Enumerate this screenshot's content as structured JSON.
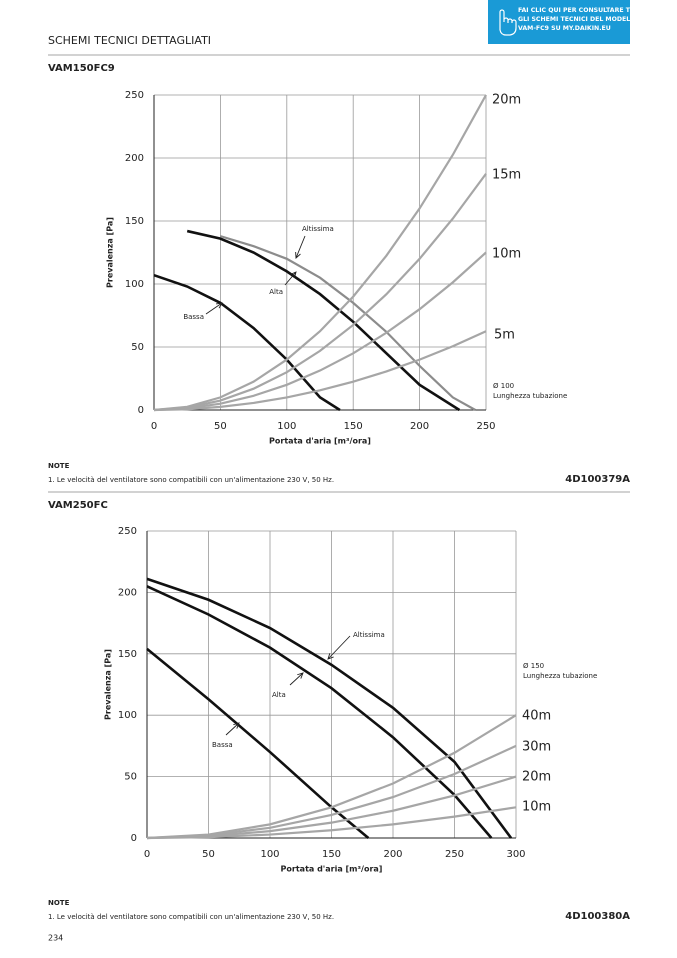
{
  "header": {
    "title": "SCHEMI TECNICI DETTAGLIATI",
    "link": [
      "FAI CLIC QUI PER CONSULTARE TUTTI",
      "GLI SCHEMI TECNICI DEL MODELLO",
      "VAM-FC9 SU MY.DAIKIN.EU"
    ]
  },
  "sections": [
    {
      "note_heading": "NOTE",
      "note": "1.   Le velocità del ventilatore sono compatibili con un'alimentazione 230 V, 50 Hz.",
      "code": "4D100379A"
    },
    {
      "note_heading": "NOTE",
      "note": "1.   Le velocità del ventilatore sono compatibili con un'alimentazione 230 V, 50 Hz.",
      "code": "4D100380A"
    }
  ],
  "chart_data": [
    {
      "type": "line",
      "title": "VAM150FC9",
      "x_label": "Portata d'aria [m³/ora]",
      "y_label": "Prevalenza [Pa]",
      "annotations": [
        "Ø 100",
        "Lunghezza tubazione"
      ],
      "xlim": [
        0,
        250
      ],
      "ylim": [
        0,
        250
      ],
      "xticks": [
        0,
        50,
        100,
        150,
        200,
        250
      ],
      "yticks": [
        0,
        50,
        100,
        150,
        200,
        250
      ],
      "grid": true,
      "series": [
        {
          "name": "Bassa",
          "color": "#111111",
          "x": [
            0,
            25,
            50,
            75,
            100,
            125,
            140
          ],
          "values": [
            107,
            98,
            85,
            65,
            40,
            10,
            0
          ]
        },
        {
          "name": "Alta",
          "color": "#111111",
          "x": [
            25,
            50,
            75,
            100,
            125,
            150,
            175,
            200,
            230
          ],
          "values": [
            142,
            136,
            125,
            110,
            92,
            70,
            45,
            20,
            0
          ]
        },
        {
          "name": "Altissima",
          "color": "#8c8c8c",
          "x": [
            50,
            75,
            100,
            125,
            150,
            175,
            200,
            225,
            242
          ],
          "values": [
            138,
            130,
            120,
            105,
            85,
            62,
            35,
            10,
            0
          ]
        },
        {
          "name": "20m",
          "color": "#a6a6a6",
          "x": [
            0,
            25,
            50,
            75,
            100,
            125,
            150,
            175,
            200,
            225,
            250
          ],
          "values": [
            0,
            2.5,
            10,
            22.5,
            40,
            62.5,
            90,
            122.5,
            160,
            202.5,
            250
          ]
        },
        {
          "name": "15m",
          "color": "#a6a6a6",
          "x": [
            0,
            25,
            50,
            75,
            100,
            125,
            150,
            175,
            200,
            225,
            250
          ],
          "values": [
            0,
            1.9,
            7.5,
            16.9,
            30,
            46.9,
            67.5,
            91.9,
            120,
            151.9,
            187.5
          ]
        },
        {
          "name": "10m",
          "color": "#a6a6a6",
          "x": [
            0,
            25,
            50,
            75,
            100,
            125,
            150,
            175,
            200,
            225,
            250
          ],
          "values": [
            0,
            1.3,
            5,
            11.3,
            20,
            31.3,
            45,
            61.3,
            80,
            101.3,
            125
          ]
        },
        {
          "name": "5m",
          "color": "#a6a6a6",
          "x": [
            0,
            25,
            50,
            75,
            100,
            125,
            150,
            175,
            200,
            225,
            250
          ],
          "values": [
            0,
            0.6,
            2.5,
            5.6,
            10,
            15.6,
            22.5,
            30.6,
            40,
            50.6,
            62.5
          ]
        }
      ]
    },
    {
      "type": "line",
      "title": "VAM250FC",
      "x_label": "Portata d'aria [m³/ora]",
      "y_label": "Prevalenza [Pa]",
      "annotations": [
        "Ø 150",
        "Lunghezza tubazione"
      ],
      "xlim": [
        0,
        300
      ],
      "ylim": [
        0,
        250
      ],
      "xticks": [
        0,
        50,
        100,
        150,
        200,
        250,
        300
      ],
      "yticks": [
        0,
        50,
        100,
        150,
        200,
        250
      ],
      "grid": true,
      "series": [
        {
          "name": "Bassa",
          "color": "#111111",
          "x": [
            0,
            50,
            100,
            150,
            180
          ],
          "values": [
            154,
            113,
            70,
            25,
            0
          ]
        },
        {
          "name": "Alta",
          "color": "#111111",
          "x": [
            0,
            50,
            100,
            150,
            200,
            250,
            280
          ],
          "values": [
            205,
            182,
            155,
            122,
            82,
            35,
            0
          ]
        },
        {
          "name": "Altissima",
          "color": "#111111",
          "x": [
            0,
            50,
            100,
            150,
            200,
            250,
            296
          ],
          "values": [
            211,
            194,
            171,
            141,
            106,
            62,
            0
          ]
        },
        {
          "name": "40m",
          "color": "#a6a6a6",
          "x": [
            0,
            50,
            100,
            150,
            200,
            250,
            300
          ],
          "values": [
            0,
            2.8,
            11.1,
            25,
            44.4,
            69.4,
            100
          ]
        },
        {
          "name": "30m",
          "color": "#a6a6a6",
          "x": [
            0,
            50,
            100,
            150,
            200,
            250,
            300
          ],
          "values": [
            0,
            2.1,
            8.3,
            18.8,
            33.3,
            52.1,
            75
          ]
        },
        {
          "name": "20m",
          "color": "#a6a6a6",
          "x": [
            0,
            50,
            100,
            150,
            200,
            250,
            300
          ],
          "values": [
            0,
            1.4,
            5.6,
            12.5,
            22.2,
            34.7,
            50
          ]
        },
        {
          "name": "10m",
          "color": "#a6a6a6",
          "x": [
            0,
            50,
            100,
            150,
            200,
            250,
            300
          ],
          "values": [
            0,
            0.7,
            2.8,
            6.3,
            11.1,
            17.4,
            25
          ]
        }
      ]
    }
  ],
  "page_number": "234"
}
